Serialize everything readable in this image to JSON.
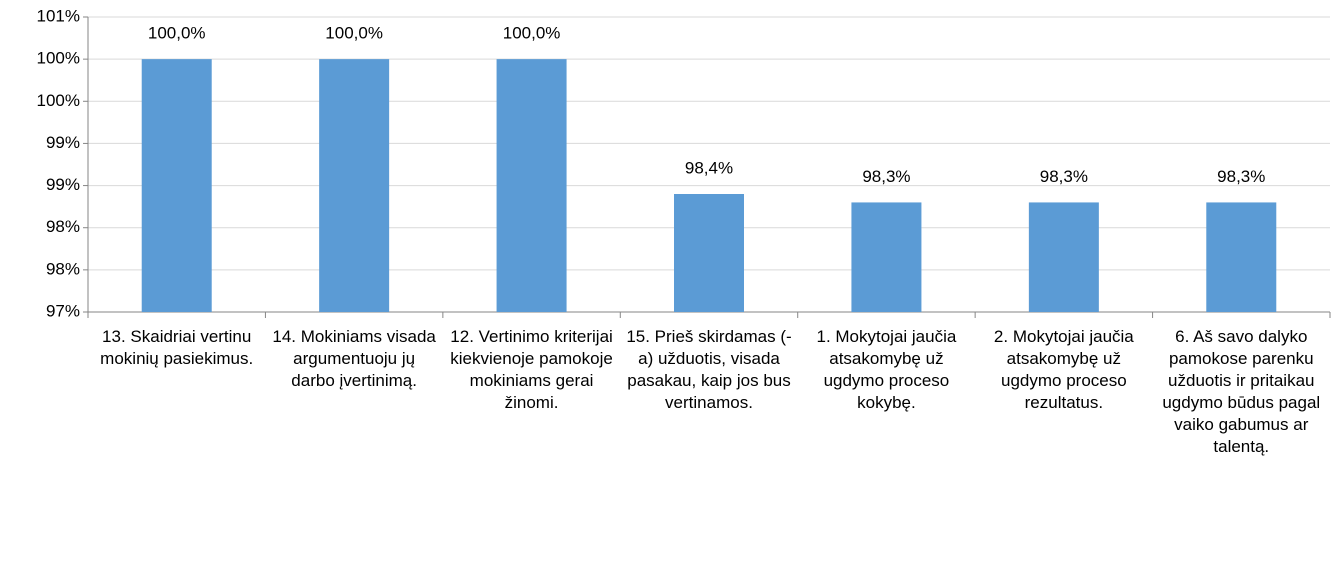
{
  "chart_data": {
    "type": "bar",
    "categories": [
      "13. Skaidriai vertinu mokinių pasiekimus.",
      "14. Mokiniams visada argumentuoju jų darbo įvertinimą.",
      "12. Vertinimo kriterijai kiekvienoje pamokoje mokiniams gerai žinomi.",
      "15.  Prieš skirdamas (-a) užduotis, visada pasakau, kaip jos bus vertinamos.",
      "1. Mokytojai jaučia atsakomybę už ugdymo proceso kokybę.",
      "2. Mokytojai jaučia atsakomybę už ugdymo proceso rezultatus.",
      "6. Aš savo dalyko pamokose parenku užduotis ir pritaikau ugdymo būdus pagal vaiko gabumus ar talentą."
    ],
    "values": [
      100,
      100,
      100,
      98.4,
      98.3,
      98.3,
      98.3
    ],
    "value_labels": [
      "100,0%",
      "100,0%",
      "100,0%",
      "98,4%",
      "98,3%",
      "98,3%",
      "98,3%"
    ],
    "color": "#5b9bd5",
    "ylim": [
      97,
      100.5
    ],
    "yticks": [
      {
        "value": 97,
        "label": "97%"
      },
      {
        "value": 97.5,
        "label": "98%"
      },
      {
        "value": 98,
        "label": "98%"
      },
      {
        "value": 98.5,
        "label": "99%"
      },
      {
        "value": 99,
        "label": "99%"
      },
      {
        "value": 99.5,
        "label": "100%"
      },
      {
        "value": 100,
        "label": "100%"
      },
      {
        "value": 100.5,
        "label": "101%"
      }
    ],
    "grid": true
  }
}
